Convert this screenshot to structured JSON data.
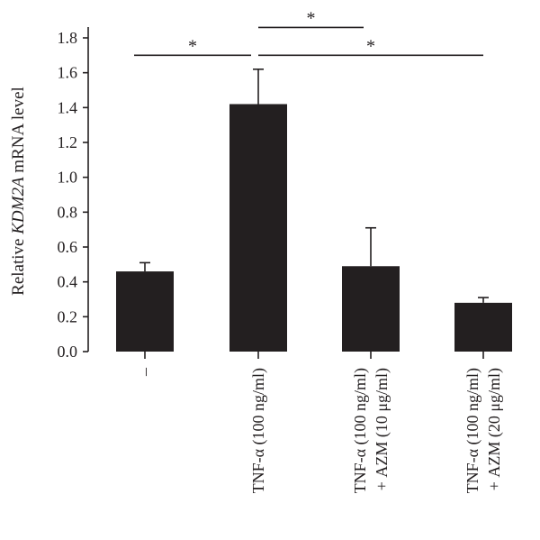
{
  "chart_data": {
    "type": "bar",
    "ylabel_parts": [
      {
        "text": "Relative ",
        "italic": false
      },
      {
        "text": "KDM2A",
        "italic": true
      },
      {
        "text": " mRNA level",
        "italic": false
      }
    ],
    "ylim": [
      0,
      1.8
    ],
    "yticks": [
      "0.0",
      "0.2",
      "0.4",
      "0.6",
      "0.8",
      "1.0",
      "1.2",
      "1.4",
      "1.6",
      "1.8"
    ],
    "categories": [
      [
        "–"
      ],
      [
        "TNF-α (100 ng/ml)"
      ],
      [
        "TNF-α (100 ng/ml)",
        "+ AZM (10 μg/ml)"
      ],
      [
        "TNF-α (100 ng/ml)",
        "+ AZM (20 μg/ml)"
      ]
    ],
    "values": [
      0.46,
      1.42,
      0.49,
      0.28
    ],
    "errors": [
      0.05,
      0.2,
      0.22,
      0.03
    ],
    "significance": [
      {
        "from": 0,
        "to": 1,
        "label": "*",
        "level": 1.7
      },
      {
        "from": 1,
        "to": 2,
        "label": "*",
        "level": 1.86
      },
      {
        "from": 1,
        "to": 3,
        "label": "*",
        "level": 1.7
      }
    ],
    "colors": {
      "bar": "#231f20",
      "axis": "#231f20"
    },
    "grid": false
  }
}
